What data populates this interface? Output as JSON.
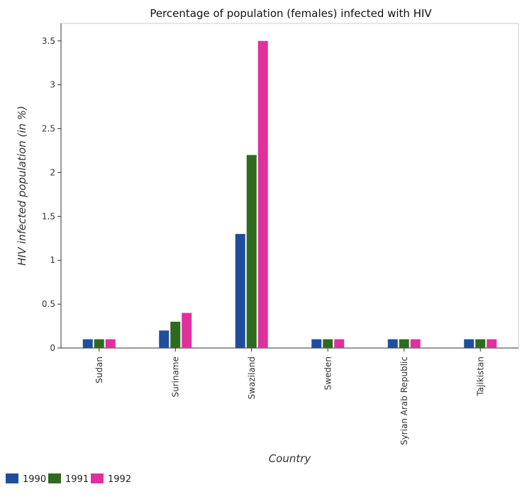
{
  "chart_data": {
    "type": "bar",
    "title": "Percentage of population (females) infected with HIV",
    "xlabel": "Country",
    "ylabel": "HIV infected population (in %)",
    "categories": [
      "Sudan",
      "Suriname",
      "Swaziland",
      "Sweden",
      "Syrian Arab Republic",
      "Tajikistan"
    ],
    "series": [
      {
        "name": "1990",
        "color": "#1f4e9c",
        "values": [
          0.1,
          0.2,
          1.3,
          0.1,
          0.1,
          0.1
        ]
      },
      {
        "name": "1991",
        "color": "#2e6b1f",
        "values": [
          0.1,
          0.3,
          2.2,
          0.1,
          0.1,
          0.1
        ]
      },
      {
        "name": "1992",
        "color": "#e0309e",
        "values": [
          0.1,
          0.4,
          3.5,
          0.1,
          0.1,
          0.1
        ]
      }
    ],
    "ylim": [
      0,
      3.7
    ],
    "yticks": [
      0,
      0.5,
      1,
      1.5,
      2,
      2.5,
      3,
      3.5
    ],
    "ytick_labels": [
      "0",
      "0.5",
      "1",
      "1.5",
      "2",
      "2.5",
      "3",
      "3.5"
    ],
    "legend_position": "bottom-left",
    "grid": false
  }
}
